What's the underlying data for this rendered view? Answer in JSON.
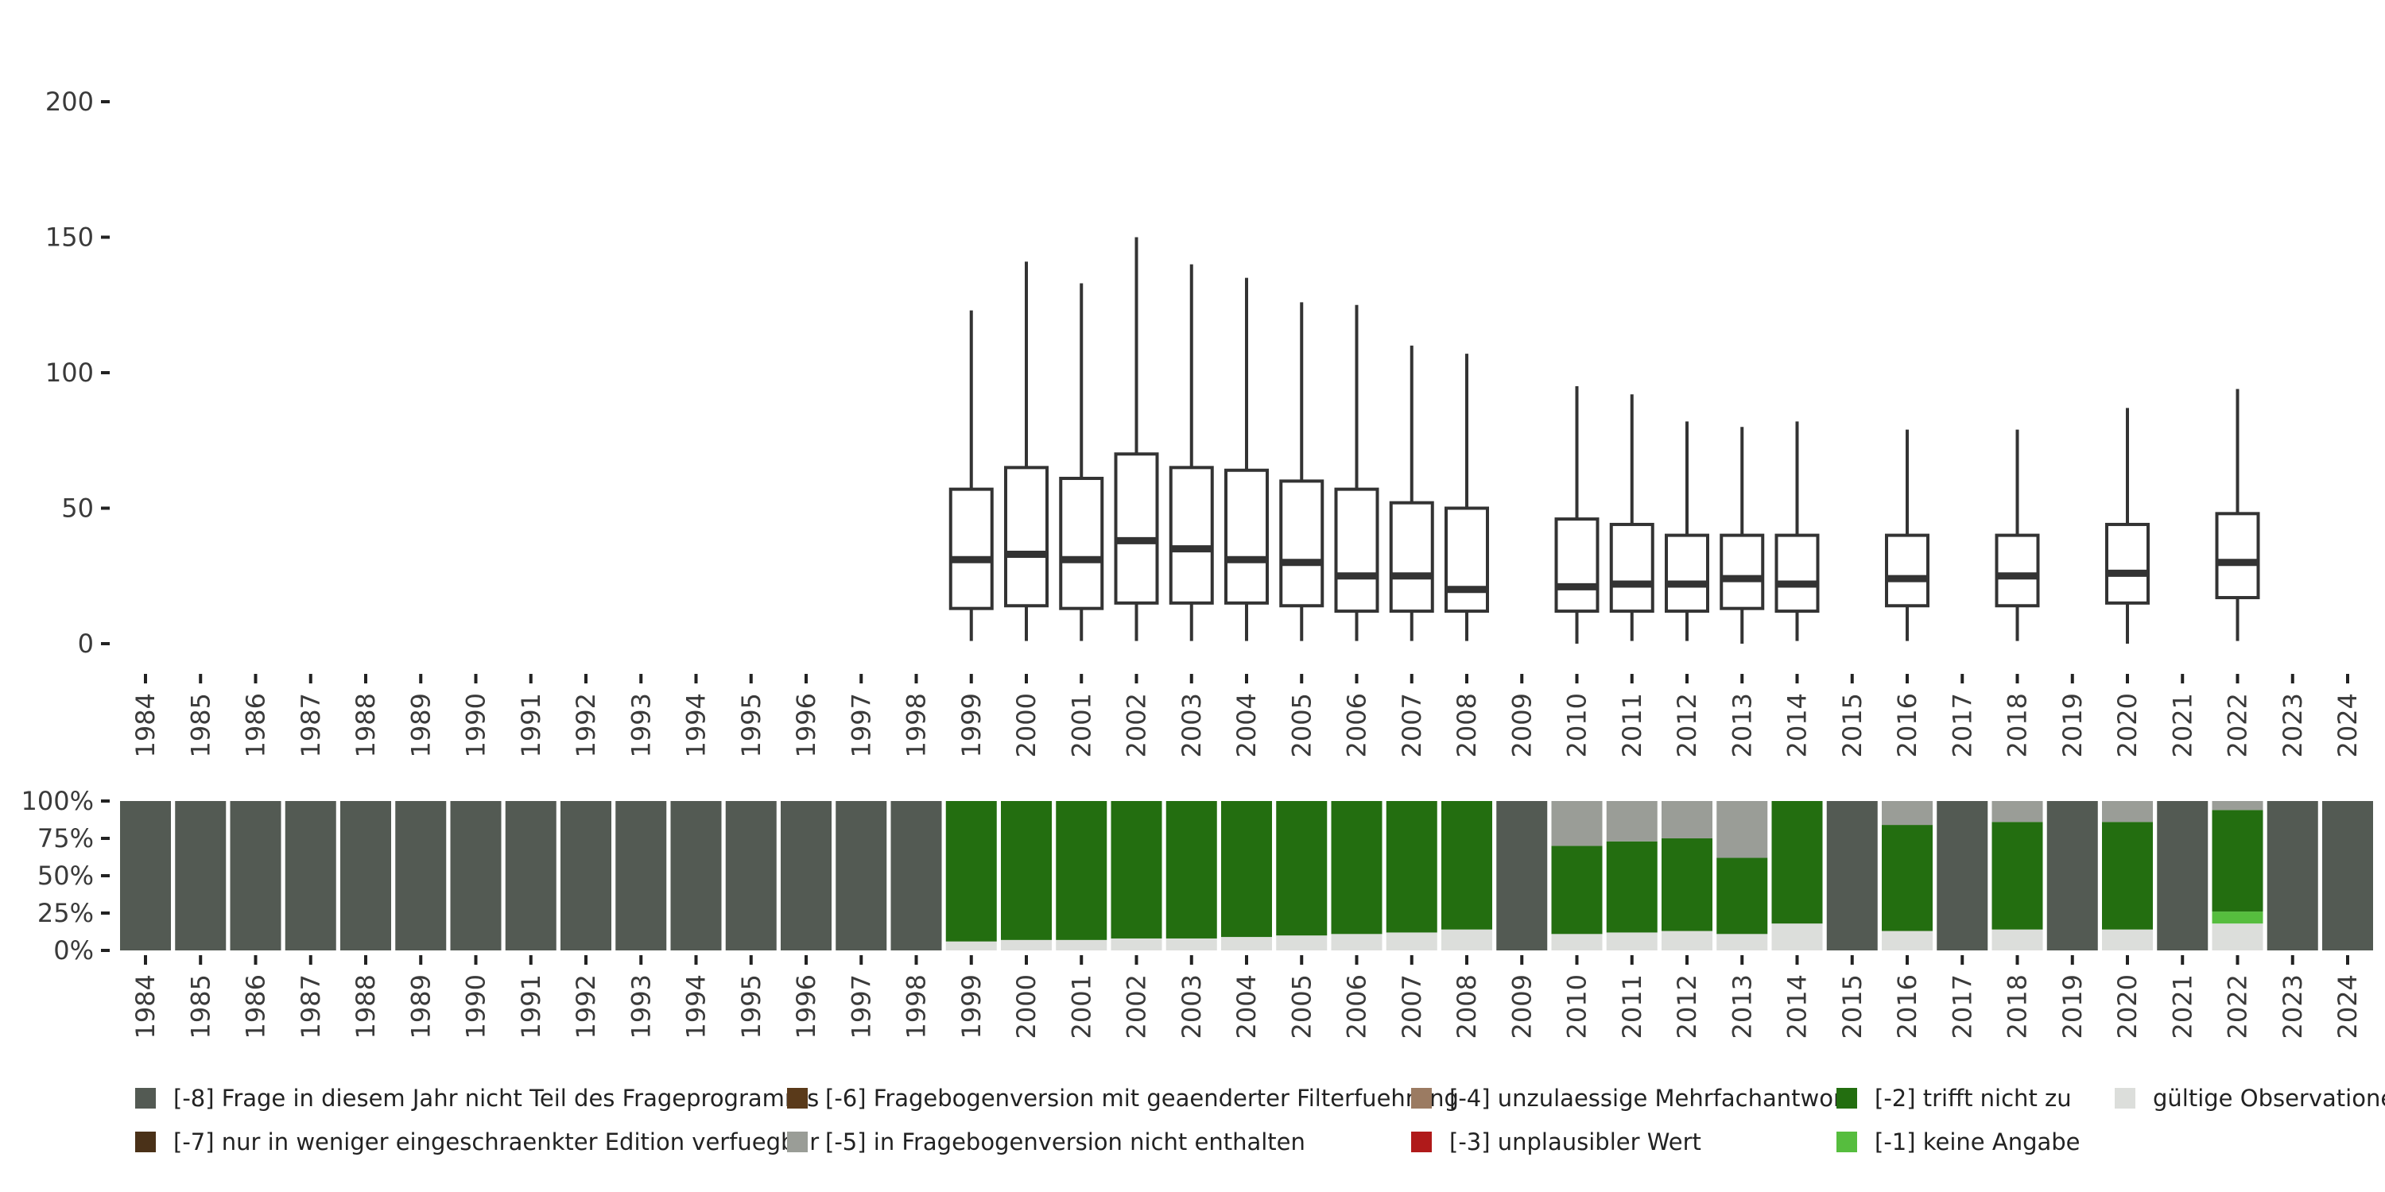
{
  "chart_data": [
    {
      "type": "boxplot",
      "title": "",
      "xlabel": "",
      "ylabel": "",
      "ylim": [
        0,
        200
      ],
      "yticks": [
        0,
        50,
        100,
        150,
        200
      ],
      "categories": [
        "1984",
        "1985",
        "1986",
        "1987",
        "1988",
        "1989",
        "1990",
        "1991",
        "1992",
        "1993",
        "1994",
        "1995",
        "1996",
        "1997",
        "1998",
        "1999",
        "2000",
        "2001",
        "2002",
        "2003",
        "2004",
        "2005",
        "2006",
        "2007",
        "2008",
        "2009",
        "2010",
        "2011",
        "2012",
        "2013",
        "2014",
        "2015",
        "2016",
        "2017",
        "2018",
        "2019",
        "2020",
        "2021",
        "2022",
        "2023",
        "2024"
      ],
      "boxes": [
        {
          "year": "1999",
          "min": 1,
          "q1": 13,
          "median": 31,
          "q3": 57,
          "max": 123
        },
        {
          "year": "2000",
          "min": 1,
          "q1": 14,
          "median": 33,
          "q3": 65,
          "max": 141
        },
        {
          "year": "2001",
          "min": 1,
          "q1": 13,
          "median": 31,
          "q3": 61,
          "max": 133
        },
        {
          "year": "2002",
          "min": 1,
          "q1": 15,
          "median": 38,
          "q3": 70,
          "max": 150
        },
        {
          "year": "2003",
          "min": 1,
          "q1": 15,
          "median": 35,
          "q3": 65,
          "max": 140
        },
        {
          "year": "2004",
          "min": 1,
          "q1": 15,
          "median": 31,
          "q3": 64,
          "max": 135
        },
        {
          "year": "2005",
          "min": 1,
          "q1": 14,
          "median": 30,
          "q3": 60,
          "max": 126
        },
        {
          "year": "2006",
          "min": 1,
          "q1": 12,
          "median": 25,
          "q3": 57,
          "max": 125
        },
        {
          "year": "2007",
          "min": 1,
          "q1": 12,
          "median": 25,
          "q3": 52,
          "max": 110
        },
        {
          "year": "2008",
          "min": 1,
          "q1": 12,
          "median": 20,
          "q3": 50,
          "max": 107
        },
        {
          "year": "2010",
          "min": 0,
          "q1": 12,
          "median": 21,
          "q3": 46,
          "max": 95
        },
        {
          "year": "2011",
          "min": 1,
          "q1": 12,
          "median": 22,
          "q3": 44,
          "max": 92
        },
        {
          "year": "2012",
          "min": 1,
          "q1": 12,
          "median": 22,
          "q3": 40,
          "max": 82
        },
        {
          "year": "2013",
          "min": 0,
          "q1": 13,
          "median": 24,
          "q3": 40,
          "max": 80
        },
        {
          "year": "2014",
          "min": 1,
          "q1": 12,
          "median": 22,
          "q3": 40,
          "max": 82
        },
        {
          "year": "2016",
          "min": 1,
          "q1": 14,
          "median": 24,
          "q3": 40,
          "max": 79
        },
        {
          "year": "2018",
          "min": 1,
          "q1": 14,
          "median": 25,
          "q3": 40,
          "max": 79
        },
        {
          "year": "2020",
          "min": 0,
          "q1": 15,
          "median": 26,
          "q3": 44,
          "max": 87
        },
        {
          "year": "2022",
          "min": 1,
          "q1": 17,
          "median": 30,
          "q3": 48,
          "max": 94
        }
      ]
    },
    {
      "type": "bar",
      "stacked": true,
      "percent": true,
      "ylim": [
        0,
        100
      ],
      "yticks": [
        "0%",
        "25%",
        "50%",
        "75%",
        "100%"
      ],
      "categories": [
        "1984",
        "1985",
        "1986",
        "1987",
        "1988",
        "1989",
        "1990",
        "1991",
        "1992",
        "1993",
        "1994",
        "1995",
        "1996",
        "1997",
        "1998",
        "1999",
        "2000",
        "2001",
        "2002",
        "2003",
        "2004",
        "2005",
        "2006",
        "2007",
        "2008",
        "2009",
        "2010",
        "2011",
        "2012",
        "2013",
        "2014",
        "2015",
        "2016",
        "2017",
        "2018",
        "2019",
        "2020",
        "2021",
        "2022",
        "2023",
        "2024"
      ],
      "stack_order": [
        "valid",
        "m1",
        "m2",
        "m3",
        "m4",
        "m5",
        "m6",
        "m7",
        "m8"
      ],
      "series": [
        {
          "key": "m8",
          "name": "[-8] Frage in diesem Jahr nicht Teil des Frageprogramms",
          "color": "#535a53",
          "values": [
            100,
            100,
            100,
            100,
            100,
            100,
            100,
            100,
            100,
            100,
            100,
            100,
            100,
            100,
            100,
            0,
            0,
            0,
            0,
            0,
            0,
            0,
            0,
            0,
            0,
            100,
            0,
            0,
            0,
            0,
            0,
            100,
            0,
            100,
            0,
            100,
            0,
            100,
            0,
            100,
            100
          ]
        },
        {
          "key": "m7",
          "name": "[-7] nur in weniger eingeschraenkter Edition verfuegbar",
          "color": "#4a3118",
          "values": [
            0,
            0,
            0,
            0,
            0,
            0,
            0,
            0,
            0,
            0,
            0,
            0,
            0,
            0,
            0,
            0,
            0,
            0,
            0,
            0,
            0,
            0,
            0,
            0,
            0,
            0,
            0,
            0,
            0,
            0,
            0,
            0,
            0,
            0,
            0,
            0,
            0,
            0,
            0,
            0,
            0
          ]
        },
        {
          "key": "m6",
          "name": "[-6] Fragebogenversion mit geaenderter Filterfuehrung",
          "color": "#5a3a1a",
          "values": [
            0,
            0,
            0,
            0,
            0,
            0,
            0,
            0,
            0,
            0,
            0,
            0,
            0,
            0,
            0,
            0,
            0,
            0,
            0,
            0,
            0,
            0,
            0,
            0,
            0,
            0,
            0,
            0,
            0,
            0,
            0,
            0,
            0,
            0,
            0,
            0,
            0,
            0,
            0,
            0,
            0
          ]
        },
        {
          "key": "m5",
          "name": "[-5] in Fragebogenversion nicht enthalten",
          "color": "#9a9d97",
          "values": [
            0,
            0,
            0,
            0,
            0,
            0,
            0,
            0,
            0,
            0,
            0,
            0,
            0,
            0,
            0,
            0,
            0,
            0,
            0,
            0,
            0,
            0,
            0,
            0,
            0,
            0,
            30,
            27,
            25,
            38,
            0,
            0,
            16,
            0,
            14,
            0,
            14,
            0,
            6,
            0,
            0
          ]
        },
        {
          "key": "m4",
          "name": "[-4] unzulaessige Mehrfachantwort",
          "color": "#9b7b62",
          "values": [
            0,
            0,
            0,
            0,
            0,
            0,
            0,
            0,
            0,
            0,
            0,
            0,
            0,
            0,
            0,
            0,
            0,
            0,
            0,
            0,
            0,
            0,
            0,
            0,
            0,
            0,
            0,
            0,
            0,
            0,
            0,
            0,
            0,
            0,
            0,
            0,
            0,
            0,
            0,
            0,
            0
          ]
        },
        {
          "key": "m3",
          "name": "[-3] unplausibler Wert",
          "color": "#b01a1a",
          "values": [
            0,
            0,
            0,
            0,
            0,
            0,
            0,
            0,
            0,
            0,
            0,
            0,
            0,
            0,
            0,
            0,
            0,
            0,
            0,
            0,
            0,
            0,
            0,
            0,
            0,
            0,
            0,
            0,
            0,
            0,
            0,
            0,
            0,
            0,
            0,
            0,
            0,
            0,
            0,
            0,
            0
          ]
        },
        {
          "key": "m2",
          "name": "[-2] trifft nicht zu",
          "color": "#236e10",
          "values": [
            0,
            0,
            0,
            0,
            0,
            0,
            0,
            0,
            0,
            0,
            0,
            0,
            0,
            0,
            0,
            94,
            93,
            93,
            92,
            92,
            91,
            90,
            89,
            88,
            86,
            0,
            59,
            61,
            62,
            51,
            82,
            0,
            71,
            0,
            72,
            0,
            72,
            0,
            68,
            0,
            0
          ]
        },
        {
          "key": "m1",
          "name": "[-1] keine Angabe",
          "color": "#56bd3e",
          "values": [
            0,
            0,
            0,
            0,
            0,
            0,
            0,
            0,
            0,
            0,
            0,
            0,
            0,
            0,
            0,
            0,
            0,
            0,
            0,
            0,
            0,
            0,
            0,
            0,
            0,
            0,
            0,
            0,
            0,
            0,
            0,
            0,
            0,
            0,
            0,
            0,
            0,
            0,
            8,
            0,
            0
          ]
        },
        {
          "key": "valid",
          "name": "gültige Observationen",
          "color": "#dcdedb",
          "values": [
            0,
            0,
            0,
            0,
            0,
            0,
            0,
            0,
            0,
            0,
            0,
            0,
            0,
            0,
            0,
            6,
            7,
            7,
            8,
            8,
            9,
            10,
            11,
            12,
            14,
            0,
            11,
            12,
            13,
            11,
            18,
            0,
            13,
            0,
            14,
            0,
            14,
            0,
            18,
            0,
            0
          ]
        }
      ]
    }
  ],
  "legend": [
    {
      "key": "m8",
      "label": "[-8] Frage in diesem Jahr nicht Teil des Frageprogramms",
      "color": "#535a53"
    },
    {
      "key": "m7",
      "label": "[-7] nur in weniger eingeschraenkter Edition verfuegbar",
      "color": "#4a3118"
    },
    {
      "key": "m6",
      "label": "[-6] Fragebogenversion mit geaenderter Filterfuehrung",
      "color": "#5a3a1a"
    },
    {
      "key": "m5",
      "label": "[-5] in Fragebogenversion nicht enthalten",
      "color": "#9a9d97"
    },
    {
      "key": "m4",
      "label": "[-4] unzulaessige Mehrfachantwort",
      "color": "#9b7b62"
    },
    {
      "key": "m3",
      "label": "[-3] unplausibler Wert",
      "color": "#b01a1a"
    },
    {
      "key": "m2",
      "label": "[-2] trifft nicht zu",
      "color": "#236e10"
    },
    {
      "key": "m1",
      "label": "[-1] keine Angabe",
      "color": "#56bd3e"
    },
    {
      "key": "valid",
      "label": "gültige Observationen",
      "color": "#dcdedb"
    }
  ]
}
